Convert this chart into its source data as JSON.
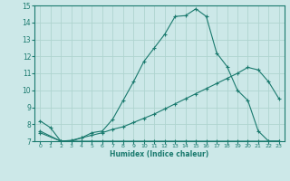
{
  "xlabel": "Humidex (Indice chaleur)",
  "bg_color": "#cce8e8",
  "grid_color": "#afd4d0",
  "line_color": "#1a7a6e",
  "xlim": [
    -0.5,
    23.5
  ],
  "ylim": [
    7,
    15
  ],
  "yticks": [
    7,
    8,
    9,
    10,
    11,
    12,
    13,
    14,
    15
  ],
  "xticks": [
    0,
    1,
    2,
    3,
    4,
    5,
    6,
    7,
    8,
    9,
    10,
    11,
    12,
    13,
    14,
    15,
    16,
    17,
    18,
    19,
    20,
    21,
    22,
    23
  ],
  "curve1_x": [
    0,
    1,
    2,
    3,
    4,
    5,
    6,
    7,
    8,
    9,
    10,
    11,
    12,
    13,
    14,
    15,
    16,
    17,
    18,
    19,
    20,
    21,
    22,
    23
  ],
  "curve1_y": [
    8.2,
    7.8,
    7.0,
    7.0,
    7.2,
    7.5,
    7.6,
    8.3,
    9.4,
    10.5,
    11.7,
    12.5,
    13.3,
    14.35,
    14.4,
    14.8,
    14.35,
    12.2,
    11.4,
    10.0,
    9.4,
    7.6,
    7.0,
    7.0
  ],
  "curve2_x": [
    0,
    2,
    3,
    4,
    5,
    6,
    7,
    8,
    9,
    10,
    11,
    12,
    13,
    14,
    15,
    16,
    17,
    18,
    19,
    20,
    21,
    22,
    23
  ],
  "curve2_y": [
    7.6,
    7.0,
    7.05,
    7.2,
    7.35,
    7.5,
    7.7,
    7.85,
    8.1,
    8.35,
    8.6,
    8.9,
    9.2,
    9.5,
    9.8,
    10.1,
    10.4,
    10.7,
    11.0,
    11.35,
    11.2,
    10.5,
    9.5
  ],
  "curve3_x": [
    0,
    2,
    3,
    4,
    5,
    6,
    7,
    8,
    9,
    10,
    11,
    12,
    13,
    14,
    15,
    16,
    17,
    18,
    19,
    20,
    21,
    22,
    23
  ],
  "curve3_y": [
    7.5,
    7.0,
    7.0,
    7.0,
    7.0,
    7.0,
    7.0,
    7.0,
    7.0,
    7.0,
    7.0,
    7.0,
    7.0,
    7.0,
    7.0,
    7.0,
    7.0,
    7.0,
    7.0,
    7.0,
    7.0,
    7.0,
    7.0
  ]
}
